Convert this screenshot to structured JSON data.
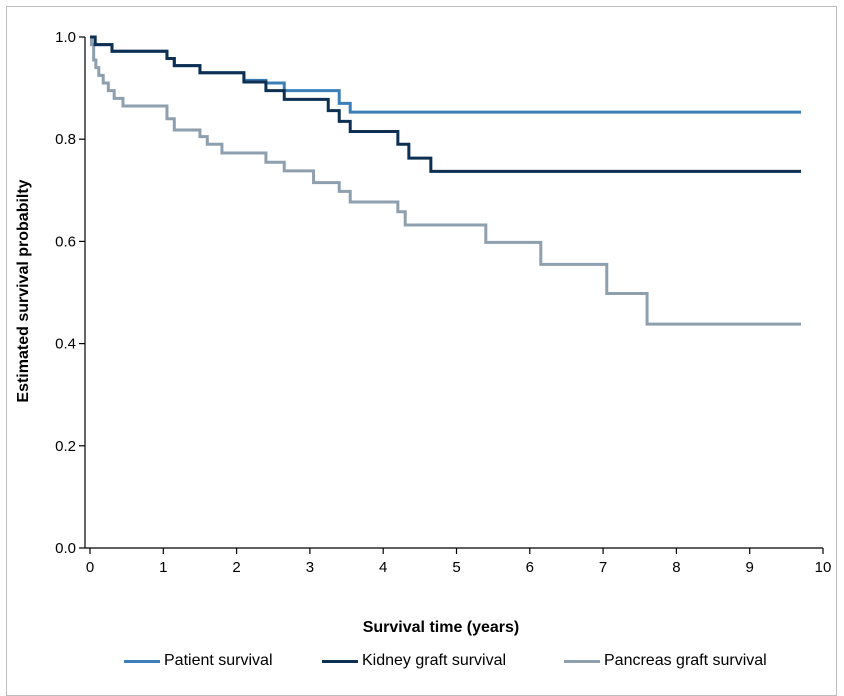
{
  "chart_data": {
    "type": "line",
    "step": true,
    "xlabel": "Survival time (years)",
    "ylabel": "Estimated survival probabilty",
    "xlim": [
      0,
      10
    ],
    "ylim": [
      0,
      1.0
    ],
    "x_ticks": [
      0,
      1,
      2,
      3,
      4,
      5,
      6,
      7,
      8,
      9,
      10
    ],
    "y_ticks": [
      "0.0",
      "0.2",
      "0.4",
      "0.6",
      "0.8",
      "1.0"
    ],
    "y_tick_values": [
      0,
      0.2,
      0.4,
      0.6,
      0.8,
      1.0
    ],
    "grid": false,
    "legend_position": "bottom",
    "series": [
      {
        "name": "Patient survival",
        "color": "#3a7fb8",
        "x": [
          0,
          0.07,
          0.3,
          1.05,
          1.15,
          1.5,
          2.1,
          2.4,
          2.65,
          3.4,
          3.55,
          9.7
        ],
        "y": [
          1.0,
          0.985,
          0.972,
          0.958,
          0.944,
          0.93,
          0.915,
          0.91,
          0.895,
          0.87,
          0.853,
          0.853
        ]
      },
      {
        "name": "Kidney graft survival",
        "color": "#0d2f52",
        "x": [
          0,
          0.05,
          0.07,
          0.3,
          1.05,
          1.15,
          1.5,
          2.1,
          2.4,
          2.65,
          3.25,
          3.4,
          3.55,
          4.2,
          4.35,
          4.65,
          9.7
        ],
        "y": [
          1.0,
          1.0,
          0.985,
          0.972,
          0.958,
          0.944,
          0.93,
          0.912,
          0.895,
          0.878,
          0.856,
          0.835,
          0.815,
          0.79,
          0.763,
          0.737,
          0.737
        ]
      },
      {
        "name": "Pancreas graft survival",
        "color": "#8e9fae",
        "x": [
          0,
          0.02,
          0.05,
          0.08,
          0.12,
          0.18,
          0.25,
          0.33,
          0.45,
          1.05,
          1.15,
          1.5,
          1.6,
          1.8,
          2.4,
          2.65,
          3.05,
          3.4,
          3.55,
          4.2,
          4.3,
          4.65,
          5.4,
          6.15,
          7.05,
          7.6,
          9.7
        ],
        "y": [
          1.0,
          0.985,
          0.955,
          0.94,
          0.925,
          0.91,
          0.895,
          0.88,
          0.865,
          0.84,
          0.818,
          0.805,
          0.79,
          0.773,
          0.755,
          0.738,
          0.715,
          0.698,
          0.677,
          0.658,
          0.632,
          0.632,
          0.598,
          0.555,
          0.498,
          0.438,
          0.438
        ]
      }
    ]
  }
}
